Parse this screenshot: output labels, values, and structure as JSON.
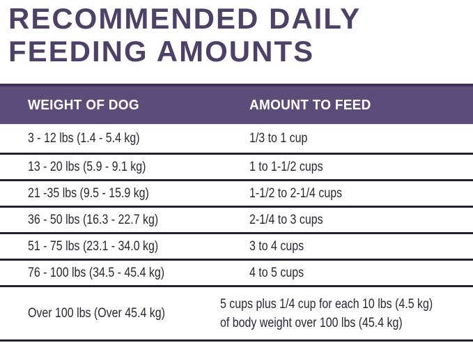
{
  "title": "RECOMMENDED DAILY\nFEEDING AMOUNTS",
  "colors": {
    "page_bg": "#ffffff",
    "title_color": "#4e4168",
    "header_bg": "#5c4c79",
    "header_top_border": "#3a3153",
    "header_text": "#ffffff",
    "divider": "#221f30",
    "body_text": "#2a2731"
  },
  "table": {
    "columns": [
      "WEIGHT OF DOG",
      "AMOUNT TO FEED"
    ],
    "rows": [
      {
        "weight": "3 - 12 lbs (1.4 - 5.4 kg)",
        "amount": "1/3 to 1 cup"
      },
      {
        "weight": "13 - 20 lbs (5.9 - 9.1 kg)",
        "amount": "1 to 1-1/2 cups"
      },
      {
        "weight": "21 -35 lbs (9.5 - 15.9 kg)",
        "amount": "1-1/2 to 2-1/4 cups"
      },
      {
        "weight": "36 - 50 lbs (16.3 - 22.7 kg)",
        "amount": "2-1/4 to 3 cups"
      },
      {
        "weight": "51 - 75 lbs (23.1 - 34.0 kg)",
        "amount": "3 to 4 cups"
      },
      {
        "weight": "76 - 100 lbs (34.5 - 45.4 kg)",
        "amount": "4 to 5 cups"
      },
      {
        "weight": "Over 100 lbs (Over 45.4 kg)",
        "amount": "5 cups plus 1/4 cup for each 10 lbs (4.5 kg)\nof body weight over 100 lbs (45.4 kg)"
      }
    ]
  }
}
